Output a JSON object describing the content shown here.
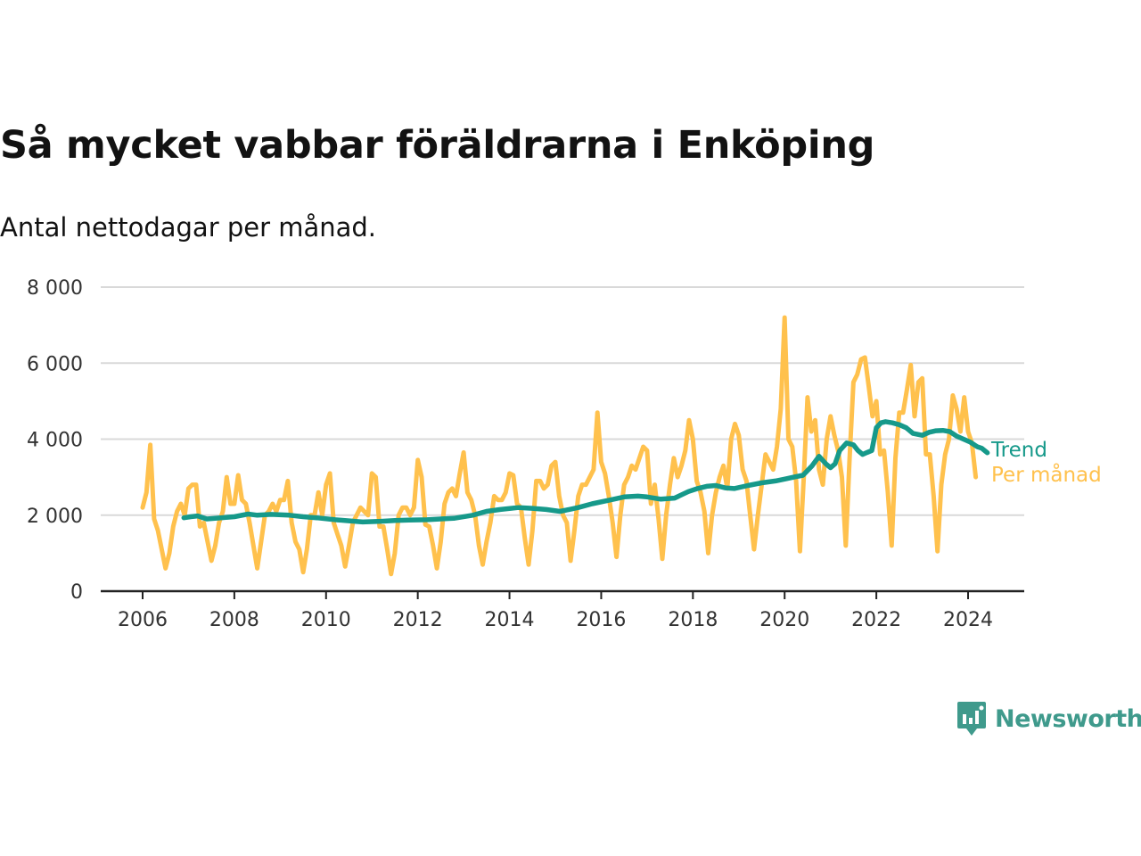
{
  "title": "Så mycket vabbar föräldrarna i Enköping",
  "subtitle": "Antal nettodagar per månad.",
  "brand": "Newsworthy",
  "colors": {
    "monthly": "#ffc14d",
    "trend": "#16998a",
    "grid": "#d9d9d9",
    "axis": "#222222",
    "brand": "#3f9a8c"
  },
  "chart_data": {
    "type": "line",
    "title": "Så mycket vabbar föräldrarna i Enköping",
    "subtitle": "Antal nettodagar per månad.",
    "xlabel": "",
    "ylabel": "",
    "ylim": [
      0,
      8000
    ],
    "xlim": [
      2006,
      2024.5
    ],
    "y_ticks": [
      0,
      2000,
      4000,
      6000,
      8000
    ],
    "y_tick_labels": [
      "0",
      "2 000",
      "4 000",
      "6 000",
      "8 000"
    ],
    "x_ticks": [
      2006,
      2008,
      2010,
      2012,
      2014,
      2016,
      2018,
      2020,
      2022,
      2024
    ],
    "x_tick_labels": [
      "2006",
      "2008",
      "2010",
      "2012",
      "2014",
      "2016",
      "2018",
      "2020",
      "2022",
      "2024"
    ],
    "grid": true,
    "series": [
      {
        "name": "Per månad",
        "start_year": 2006,
        "step_months": 1,
        "values": [
          2200,
          2600,
          3850,
          1900,
          1600,
          1100,
          600,
          1000,
          1700,
          2100,
          2300,
          2000,
          2700,
          2800,
          2800,
          1700,
          1800,
          1300,
          800,
          1200,
          1800,
          2100,
          3000,
          2300,
          2300,
          3050,
          2400,
          2300,
          1800,
          1200,
          600,
          1300,
          2000,
          2100,
          2300,
          2100,
          2400,
          2400,
          2900,
          1800,
          1300,
          1100,
          500,
          1100,
          2000,
          2000,
          2600,
          2000,
          2800,
          3100,
          1800,
          1500,
          1200,
          650,
          1200,
          1800,
          2000,
          2200,
          2100,
          2000,
          3100,
          3000,
          1700,
          1700,
          1100,
          450,
          1000,
          2000,
          2200,
          2200,
          2000,
          2200,
          3450,
          3000,
          1750,
          1700,
          1200,
          600,
          1300,
          2300,
          2600,
          2700,
          2500,
          3100,
          3650,
          2600,
          2400,
          2000,
          1200,
          700,
          1300,
          1800,
          2500,
          2400,
          2400,
          2600,
          3100,
          3050,
          2300,
          2200,
          1400,
          700,
          1600,
          2900,
          2900,
          2700,
          2800,
          3300,
          3400,
          2500,
          2000,
          1800,
          800,
          1600,
          2500,
          2800,
          2800,
          3000,
          3200,
          4700,
          3400,
          3100,
          2500,
          1800,
          900,
          2000,
          2800,
          3000,
          3300,
          3200,
          3500,
          3800,
          3700,
          2300,
          2800,
          1900,
          850,
          2000,
          2800,
          3500,
          3000,
          3300,
          3700,
          4500,
          4000,
          2900,
          2600,
          2100,
          1000,
          2000,
          2600,
          3000,
          3300,
          2700,
          4000,
          4400,
          4100,
          3200,
          2900,
          2000,
          1100,
          2000,
          2800,
          3600,
          3400,
          3200,
          3800,
          4800,
          7200,
          4000,
          3800,
          2900,
          1050,
          3000,
          5100,
          4200,
          4500,
          3200,
          2800,
          4000,
          4600,
          4100,
          3700,
          3000,
          1200,
          3500,
          5500,
          5700,
          6100,
          6150,
          5400,
          4600,
          5000,
          3600,
          3700,
          2600,
          1200,
          3500,
          4700,
          4700,
          5300,
          5950,
          4600,
          5500,
          5600,
          3600,
          3600,
          2500,
          1050,
          2800,
          3600,
          4000,
          5150,
          4800,
          4200,
          5100,
          4200,
          3900,
          3000
        ]
      },
      {
        "name": "Trend",
        "points": [
          [
            2006.9,
            1930
          ],
          [
            2007.05,
            1960
          ],
          [
            2007.2,
            1980
          ],
          [
            2007.4,
            1900
          ],
          [
            2007.7,
            1930
          ],
          [
            2008.0,
            1960
          ],
          [
            2008.3,
            2030
          ],
          [
            2008.5,
            2000
          ],
          [
            2008.8,
            2020
          ],
          [
            2009.2,
            2000
          ],
          [
            2009.5,
            1960
          ],
          [
            2009.8,
            1930
          ],
          [
            2010.2,
            1880
          ],
          [
            2010.5,
            1850
          ],
          [
            2010.8,
            1820
          ],
          [
            2011.2,
            1840
          ],
          [
            2011.5,
            1860
          ],
          [
            2011.8,
            1870
          ],
          [
            2012.2,
            1880
          ],
          [
            2012.5,
            1900
          ],
          [
            2012.8,
            1920
          ],
          [
            2013.2,
            2000
          ],
          [
            2013.5,
            2100
          ],
          [
            2013.8,
            2150
          ],
          [
            2014.2,
            2200
          ],
          [
            2014.5,
            2180
          ],
          [
            2014.8,
            2150
          ],
          [
            2015.1,
            2100
          ],
          [
            2015.3,
            2150
          ],
          [
            2015.5,
            2200
          ],
          [
            2015.8,
            2300
          ],
          [
            2016.2,
            2400
          ],
          [
            2016.5,
            2480
          ],
          [
            2016.8,
            2500
          ],
          [
            2017.0,
            2480
          ],
          [
            2017.3,
            2420
          ],
          [
            2017.6,
            2450
          ],
          [
            2017.9,
            2620
          ],
          [
            2018.1,
            2700
          ],
          [
            2018.3,
            2760
          ],
          [
            2018.5,
            2780
          ],
          [
            2018.7,
            2720
          ],
          [
            2018.9,
            2700
          ],
          [
            2019.2,
            2780
          ],
          [
            2019.5,
            2850
          ],
          [
            2019.8,
            2900
          ],
          [
            2020.0,
            2950
          ],
          [
            2020.2,
            3000
          ],
          [
            2020.4,
            3050
          ],
          [
            2020.6,
            3300
          ],
          [
            2020.75,
            3550
          ],
          [
            2020.9,
            3350
          ],
          [
            2021.0,
            3250
          ],
          [
            2021.1,
            3350
          ],
          [
            2021.2,
            3700
          ],
          [
            2021.35,
            3900
          ],
          [
            2021.5,
            3850
          ],
          [
            2021.6,
            3700
          ],
          [
            2021.7,
            3600
          ],
          [
            2021.8,
            3650
          ],
          [
            2021.9,
            3700
          ],
          [
            2022.0,
            4300
          ],
          [
            2022.1,
            4430
          ],
          [
            2022.2,
            4460
          ],
          [
            2022.35,
            4430
          ],
          [
            2022.5,
            4380
          ],
          [
            2022.65,
            4300
          ],
          [
            2022.8,
            4150
          ],
          [
            2023.0,
            4100
          ],
          [
            2023.15,
            4180
          ],
          [
            2023.3,
            4220
          ],
          [
            2023.45,
            4230
          ],
          [
            2023.6,
            4200
          ],
          [
            2023.75,
            4080
          ],
          [
            2023.9,
            4000
          ],
          [
            2024.05,
            3920
          ],
          [
            2024.2,
            3800
          ],
          [
            2024.3,
            3760
          ],
          [
            2024.42,
            3640
          ]
        ]
      }
    ],
    "legend": [
      "Trend",
      "Per månad"
    ],
    "legend_placement": "inline-right"
  }
}
